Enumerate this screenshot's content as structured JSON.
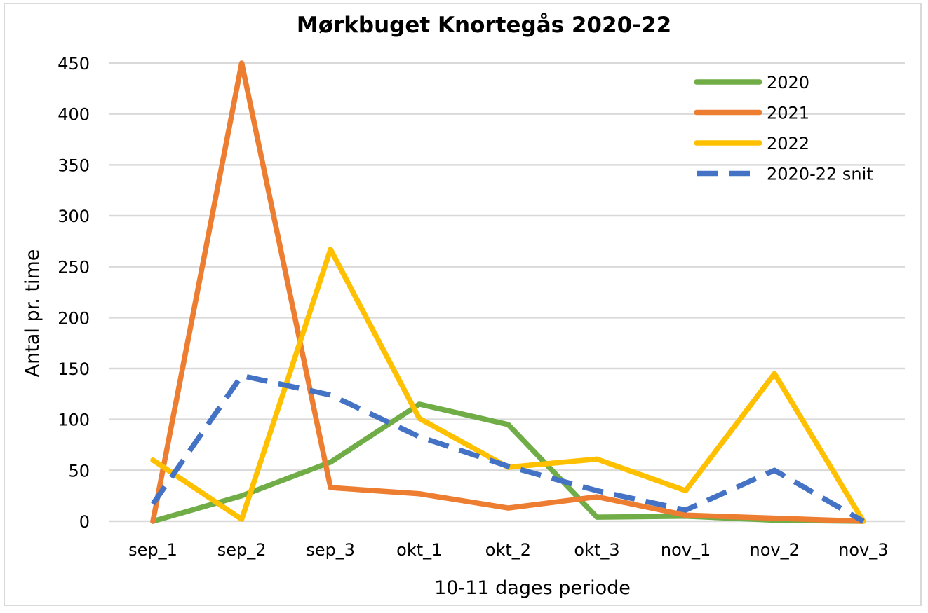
{
  "chart_data": {
    "type": "line",
    "title": "Mørkbuget Knortegås 2020-22",
    "xlabel": "10-11 dages periode",
    "ylabel": "Antal pr. time",
    "categories": [
      "sep_1",
      "sep_2",
      "sep_3",
      "okt_1",
      "okt_2",
      "okt_3",
      "nov_1",
      "nov_2",
      "nov_3"
    ],
    "ylim": [
      0,
      450
    ],
    "yticks": [
      0,
      50,
      100,
      150,
      200,
      250,
      300,
      350,
      400,
      450
    ],
    "grid": true,
    "legend_position": "top-right",
    "series": [
      {
        "name": "2020",
        "color": "#70ad47",
        "dashed": false,
        "values": [
          0,
          25,
          58,
          115,
          95,
          4,
          5,
          1,
          0
        ]
      },
      {
        "name": "2021",
        "color": "#ed7d31",
        "dashed": false,
        "values": [
          0,
          450,
          33,
          27,
          13,
          24,
          6,
          3,
          0
        ]
      },
      {
        "name": "2022",
        "color": "#ffc000",
        "dashed": false,
        "values": [
          60,
          2,
          267,
          101,
          53,
          61,
          30,
          145,
          0
        ]
      },
      {
        "name": "2020-22 snit",
        "color": "#4472c4",
        "dashed": true,
        "values": [
          17,
          143,
          124,
          83,
          54,
          30,
          11,
          50,
          0
        ]
      }
    ]
  }
}
